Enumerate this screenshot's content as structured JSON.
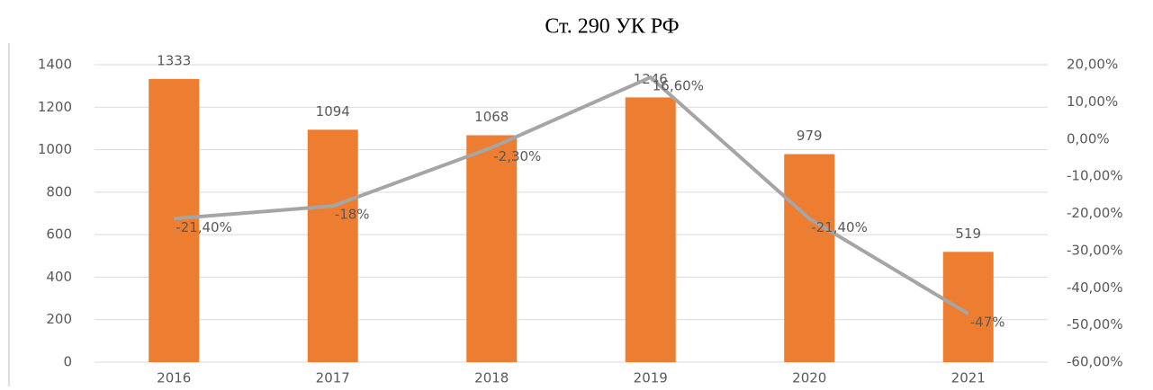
{
  "chart_data": {
    "type": "bar",
    "title": "Ст. 290 УК РФ",
    "categories": [
      "2016",
      "2017",
      "2018",
      "2019",
      "2020",
      "2021"
    ],
    "series": [
      {
        "type": "bar",
        "color": "#ed7d31",
        "values": [
          1333,
          1094,
          1068,
          1246,
          979,
          519
        ]
      },
      {
        "type": "line",
        "axis": "y2",
        "color": "#a5a5a5",
        "values": [
          -21.4,
          -18,
          -2.3,
          16.6,
          -21.4,
          -47
        ],
        "value_labels": [
          "-21,40%",
          "-18%",
          "-2,30%",
          "16,60%",
          "-21,40%",
          "-47%"
        ]
      }
    ],
    "ylim": [
      0,
      1400
    ],
    "yticks": [
      0,
      200,
      400,
      600,
      800,
      1000,
      1200,
      1400
    ],
    "y2lim": [
      -60,
      20
    ],
    "y2ticks": [
      {
        "value": -60,
        "label": "-60,00%"
      },
      {
        "value": -50,
        "label": "-50,00%"
      },
      {
        "value": -40,
        "label": "-40,00%"
      },
      {
        "value": -30,
        "label": "-30,00%"
      },
      {
        "value": -20,
        "label": "-20,00%"
      },
      {
        "value": -10,
        "label": "-10,00%"
      },
      {
        "value": 0,
        "label": "0,00%"
      },
      {
        "value": 10,
        "label": "10,00%"
      },
      {
        "value": 20,
        "label": "20,00%"
      }
    ],
    "grid": true
  }
}
